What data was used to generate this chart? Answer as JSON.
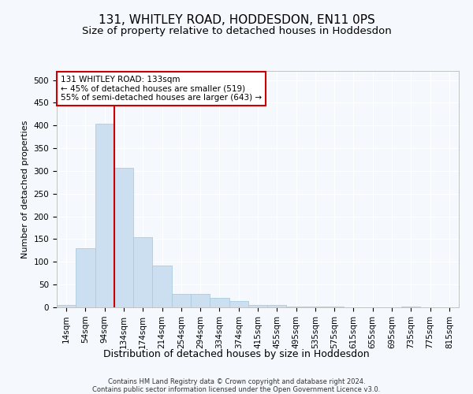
{
  "title": "131, WHITLEY ROAD, HODDESDON, EN11 0PS",
  "subtitle": "Size of property relative to detached houses in Hoddesdon",
  "xlabel": "Distribution of detached houses by size in Hoddesdon",
  "ylabel": "Number of detached properties",
  "footer_line1": "Contains HM Land Registry data © Crown copyright and database right 2024.",
  "footer_line2": "Contains public sector information licensed under the Open Government Licence v3.0.",
  "categories": [
    "14sqm",
    "54sqm",
    "94sqm",
    "134sqm",
    "174sqm",
    "214sqm",
    "254sqm",
    "294sqm",
    "334sqm",
    "374sqm",
    "415sqm",
    "455sqm",
    "495sqm",
    "535sqm",
    "575sqm",
    "615sqm",
    "655sqm",
    "695sqm",
    "735sqm",
    "775sqm",
    "815sqm"
  ],
  "values": [
    5,
    130,
    403,
    307,
    155,
    92,
    30,
    29,
    20,
    14,
    5,
    6,
    1,
    1,
    1,
    0,
    0,
    0,
    2,
    0,
    0
  ],
  "bar_color": "#ccdff0",
  "bar_edge_color": "#aacce0",
  "vline_x_index": 3,
  "vline_color": "#cc0000",
  "annotation_text": "131 WHITLEY ROAD: 133sqm\n← 45% of detached houses are smaller (519)\n55% of semi-detached houses are larger (643) →",
  "annotation_box_facecolor": "#ffffff",
  "annotation_box_edgecolor": "#cc0000",
  "ylim": [
    0,
    520
  ],
  "yticks": [
    0,
    50,
    100,
    150,
    200,
    250,
    300,
    350,
    400,
    450,
    500
  ],
  "bg_color": "#f5f8fc",
  "grid_color": "#ffffff",
  "title_fontsize": 11,
  "subtitle_fontsize": 9.5,
  "ylabel_fontsize": 8,
  "xlabel_fontsize": 9,
  "tick_fontsize": 7.5,
  "annotation_fontsize": 7.5,
  "footer_fontsize": 6
}
